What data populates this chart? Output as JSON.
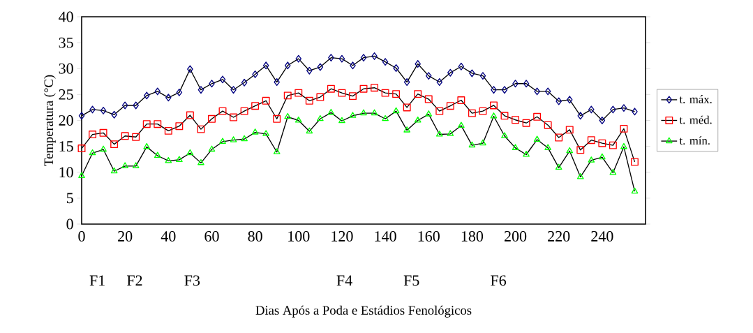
{
  "chart_data": {
    "type": "line",
    "xlabel": "Dias Após a Poda e Estádios Fenológicos",
    "ylabel": "Temperatura (°C)",
    "x": [
      0,
      5,
      10,
      15,
      20,
      25,
      30,
      35,
      40,
      45,
      50,
      55,
      60,
      65,
      70,
      75,
      80,
      85,
      90,
      95,
      100,
      105,
      110,
      115,
      120,
      125,
      130,
      135,
      140,
      145,
      150,
      155,
      160,
      165,
      170,
      175,
      180,
      185,
      190,
      195,
      200,
      205,
      210,
      215,
      220,
      225,
      230,
      235,
      240,
      245,
      250,
      255
    ],
    "series": [
      {
        "name": "t. máx.",
        "color": "#000080",
        "marker": "diamond",
        "values": [
          20.9,
          22.1,
          21.9,
          21.1,
          22.9,
          22.9,
          24.8,
          25.6,
          24.4,
          25.4,
          29.9,
          25.9,
          27.1,
          27.9,
          25.9,
          27.3,
          28.9,
          30.6,
          27.4,
          30.6,
          31.9,
          29.6,
          30.3,
          32.1,
          31.9,
          30.6,
          32.1,
          32.4,
          31.3,
          30.1,
          27.4,
          30.9,
          28.6,
          27.4,
          29.2,
          30.4,
          29.1,
          28.6,
          25.9,
          25.9,
          27.1,
          27.1,
          25.6,
          25.6,
          23.7,
          24.0,
          20.9,
          22.1,
          20.0,
          22.1,
          22.4,
          21.7
        ]
      },
      {
        "name": "t. méd.",
        "color": "#ff0000",
        "marker": "square",
        "values": [
          14.6,
          17.3,
          17.6,
          15.4,
          17.0,
          16.8,
          19.3,
          19.3,
          18.0,
          18.9,
          21.0,
          18.3,
          20.3,
          21.8,
          20.6,
          21.8,
          22.8,
          23.8,
          20.3,
          24.8,
          25.3,
          23.8,
          24.5,
          26.1,
          25.3,
          24.7,
          26.1,
          26.3,
          25.3,
          25.1,
          22.5,
          25.1,
          24.1,
          21.8,
          22.8,
          23.9,
          21.4,
          21.8,
          22.9,
          20.9,
          20.1,
          19.5,
          20.7,
          19.1,
          16.7,
          18.2,
          14.3,
          16.2,
          15.6,
          15.2,
          18.4,
          12.0
        ]
      },
      {
        "name": "t. mín.",
        "color": "#00ff00",
        "marker": "triangle",
        "values": [
          9.3,
          13.7,
          14.4,
          10.2,
          11.2,
          11.2,
          14.9,
          13.2,
          12.2,
          12.4,
          13.7,
          11.8,
          14.4,
          15.9,
          16.2,
          16.4,
          17.7,
          17.4,
          13.9,
          20.7,
          20.0,
          17.9,
          20.3,
          21.5,
          19.9,
          20.9,
          21.4,
          21.4,
          20.3,
          21.8,
          18.1,
          20.0,
          21.2,
          17.3,
          17.4,
          19.0,
          15.2,
          15.6,
          20.8,
          17.0,
          14.7,
          13.4,
          16.3,
          14.7,
          10.9,
          14.1,
          9.1,
          12.3,
          12.9,
          9.9,
          14.9,
          6.3
        ]
      }
    ],
    "xlim": [
      0,
      260
    ],
    "xticks": [
      0,
      20,
      40,
      60,
      80,
      100,
      120,
      140,
      160,
      180,
      200,
      220,
      240
    ],
    "ylim": [
      0,
      40
    ],
    "yticks": [
      0,
      5,
      10,
      15,
      20,
      25,
      30,
      35,
      40
    ],
    "grid": false,
    "legend": "right",
    "line_style": "solid",
    "annotations": [
      "F1",
      "F2",
      "F3",
      "F4",
      "F5",
      "F6"
    ]
  }
}
